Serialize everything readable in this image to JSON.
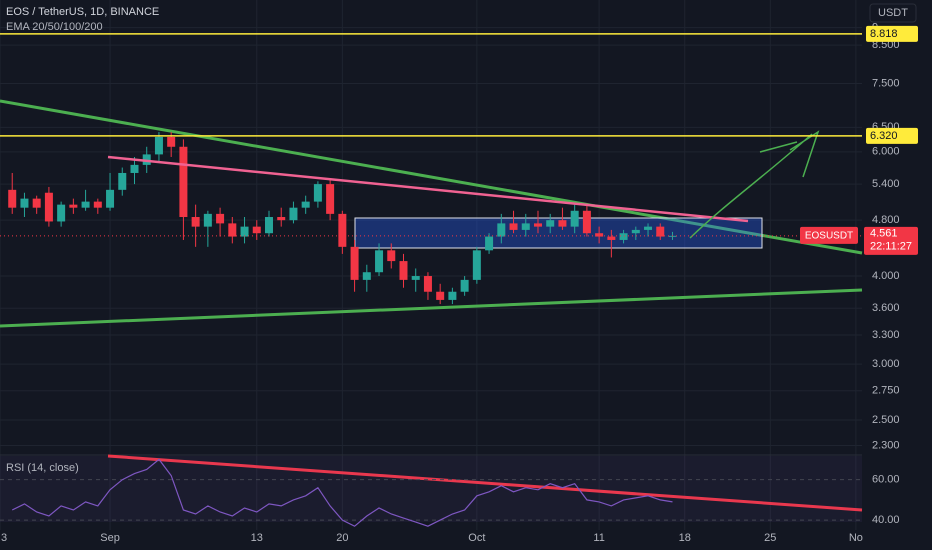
{
  "chart_data": [
    {
      "type": "candlestick",
      "title": "EOS / TetherUS, 1D, BINANCE",
      "subtitle": "EMA 20/50/100/200",
      "currency": "USDT",
      "log_scale": true,
      "grid": true,
      "up_color": "#26a69a",
      "down_color": "#f23645",
      "xlim": [
        -9,
        61.5
      ],
      "xticks": [
        {
          "value": -9,
          "label": "3"
        },
        {
          "value": 0,
          "label": "Sep"
        },
        {
          "value": 12,
          "label": "13"
        },
        {
          "value": 19,
          "label": "20"
        },
        {
          "value": 30,
          "label": "Oct"
        },
        {
          "value": 40,
          "label": "11"
        },
        {
          "value": 47,
          "label": "18"
        },
        {
          "value": 54,
          "label": "25"
        },
        {
          "value": 61,
          "label": "No"
        }
      ],
      "ylim": [
        2.23,
        9.85
      ],
      "yticks": [
        9,
        {
          "value": 8.5,
          "label": "8.500"
        },
        {
          "value": 7.5,
          "label": "7.500"
        },
        {
          "value": 6.5,
          "label": "6.500"
        },
        {
          "value": 6,
          "label": "6.000"
        },
        {
          "value": 5.4,
          "label": "5.400"
        },
        {
          "value": 4.8,
          "label": "4.800"
        },
        {
          "value": 4,
          "label": "4.000"
        },
        {
          "value": 3.6,
          "label": "3.600"
        },
        {
          "value": 3.3,
          "label": "3.300"
        },
        {
          "value": 3,
          "label": "3.000"
        },
        {
          "value": 2.75,
          "label": "2.750"
        },
        {
          "value": 2.5,
          "label": "2.500"
        },
        {
          "value": 2.3,
          "label": "2.300"
        }
      ],
      "hlines": {
        "color": "#ffeb3b",
        "levels": [
          8.818,
          {
            "value": 6.32,
            "label": "6.320"
          }
        ]
      },
      "last": {
        "symbol": "EOSUSDT",
        "price": 4.561,
        "countdown": "22:11:27"
      },
      "series": [
        {
          "name": "EOSUSDT",
          "x": [
            -8,
            -7,
            -6,
            -5,
            -4,
            -3,
            -2,
            -1,
            0,
            1,
            2,
            3,
            4,
            5,
            6,
            7,
            8,
            9,
            10,
            11,
            12,
            13,
            14,
            15,
            16,
            17,
            18,
            19,
            20,
            21,
            22,
            23,
            24,
            25,
            26,
            27,
            28,
            29,
            30,
            31,
            32,
            33,
            34,
            35,
            36,
            37,
            38,
            39,
            40,
            41,
            42,
            43,
            44,
            45,
            46
          ],
          "open": [
            5.3,
            5.0,
            5.15,
            5.25,
            4.78,
            5.05,
            5.0,
            5.1,
            5.0,
            5.3,
            5.6,
            5.75,
            5.95,
            6.3,
            6.1,
            4.85,
            4.7,
            4.9,
            4.75,
            4.55,
            4.7,
            4.6,
            4.85,
            4.8,
            5.0,
            5.1,
            5.4,
            4.9,
            4.4,
            3.95,
            4.05,
            4.35,
            4.2,
            3.95,
            4.0,
            3.8,
            3.7,
            3.8,
            3.95,
            4.35,
            4.55,
            4.75,
            4.65,
            4.75,
            4.7,
            4.8,
            4.7,
            4.95,
            4.6,
            4.55,
            4.5,
            4.6,
            4.65,
            4.7,
            4.55
          ],
          "high": [
            5.6,
            5.25,
            5.2,
            5.35,
            5.1,
            5.15,
            5.3,
            5.15,
            5.6,
            5.7,
            5.9,
            6.1,
            6.4,
            6.4,
            6.25,
            5.05,
            4.95,
            5.0,
            4.85,
            4.85,
            4.8,
            4.95,
            5.0,
            5.1,
            5.2,
            5.45,
            5.5,
            4.95,
            4.5,
            4.15,
            4.45,
            4.45,
            4.3,
            4.1,
            4.05,
            3.9,
            3.85,
            4.0,
            4.4,
            4.6,
            4.9,
            4.95,
            4.9,
            4.95,
            4.9,
            5.0,
            5.05,
            5.05,
            4.7,
            4.65,
            4.65,
            4.7,
            4.75,
            4.75,
            4.62
          ],
          "low": [
            4.9,
            4.85,
            4.9,
            4.7,
            4.7,
            4.9,
            4.95,
            4.9,
            4.95,
            5.2,
            5.4,
            5.6,
            5.8,
            5.9,
            4.5,
            4.4,
            4.4,
            4.55,
            4.45,
            4.45,
            4.5,
            4.55,
            4.7,
            4.75,
            4.9,
            5.0,
            4.8,
            4.3,
            3.8,
            3.8,
            4.0,
            4.1,
            3.85,
            3.8,
            3.7,
            3.65,
            3.65,
            3.75,
            3.9,
            4.3,
            4.45,
            4.6,
            4.55,
            4.6,
            4.6,
            4.65,
            4.6,
            4.55,
            4.45,
            4.25,
            4.45,
            4.5,
            4.55,
            4.5,
            4.5
          ],
          "close": [
            5.0,
            5.15,
            5.0,
            4.78,
            5.05,
            5.0,
            5.1,
            5.0,
            5.3,
            5.6,
            5.75,
            5.95,
            6.3,
            6.1,
            4.85,
            4.7,
            4.9,
            4.75,
            4.55,
            4.7,
            4.6,
            4.85,
            4.8,
            5.0,
            5.1,
            5.4,
            4.9,
            4.4,
            3.95,
            4.05,
            4.35,
            4.2,
            3.95,
            4.0,
            3.8,
            3.7,
            3.8,
            3.95,
            4.35,
            4.55,
            4.75,
            4.65,
            4.75,
            4.7,
            4.8,
            4.7,
            4.95,
            4.6,
            4.55,
            4.5,
            4.6,
            4.65,
            4.7,
            4.55,
            4.561
          ]
        }
      ]
    },
    {
      "type": "line",
      "title": "RSI (14, close)",
      "xlim": [
        -9,
        61.5
      ],
      "ylim": [
        35.1,
        71.7
      ],
      "yticks": [
        {
          "value": 60,
          "label": "60.00"
        },
        {
          "value": 40,
          "label": "40.00"
        }
      ],
      "series": [
        {
          "name": "RSI",
          "color": "#7e57c2",
          "x": [
            -8,
            -7,
            -6,
            -5,
            -4,
            -3,
            -2,
            -1,
            0,
            1,
            2,
            3,
            4,
            5,
            6,
            7,
            8,
            9,
            10,
            11,
            12,
            13,
            14,
            15,
            16,
            17,
            18,
            19,
            20,
            21,
            22,
            23,
            24,
            25,
            26,
            27,
            28,
            29,
            30,
            31,
            32,
            33,
            34,
            35,
            36,
            37,
            38,
            39,
            40,
            41,
            42,
            43,
            44,
            45,
            46
          ],
          "values": [
            45,
            48,
            44,
            42,
            47,
            45,
            49,
            47,
            55,
            60,
            63,
            65,
            70,
            62,
            45,
            43,
            47,
            44,
            42,
            46,
            44,
            48,
            47,
            50,
            52,
            56,
            47,
            40,
            37,
            42,
            46,
            43,
            41,
            39,
            37,
            40,
            43,
            45,
            52,
            54,
            57,
            54,
            56,
            55,
            58,
            56,
            58,
            50,
            49,
            47,
            50,
            51,
            52,
            50,
            49
          ]
        }
      ]
    }
  ]
}
